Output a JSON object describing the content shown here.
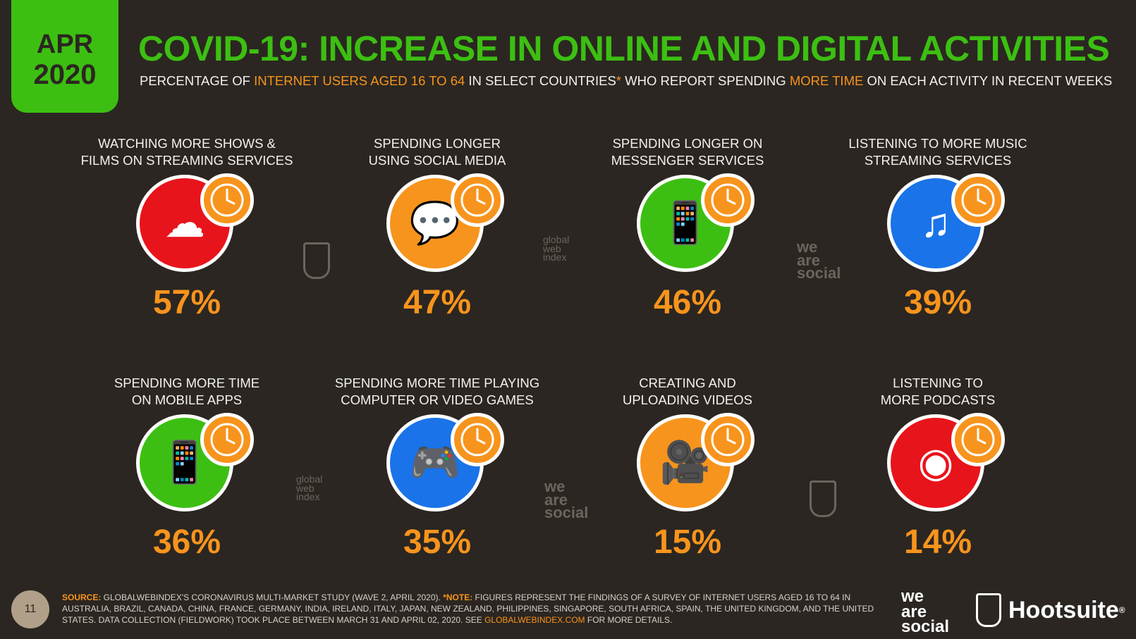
{
  "badge": {
    "month": "APR",
    "year": "2020"
  },
  "title": "COVID-19: INCREASE IN ONLINE AND DIGITAL ACTIVITIES",
  "subtitle": {
    "part1": "PERCENTAGE OF ",
    "hl1": "INTERNET USERS AGED 16 TO 64",
    "part2": " IN SELECT COUNTRIES",
    "star": "*",
    "part3": " WHO REPORT SPENDING ",
    "hl2": "MORE TIME",
    "part4": " ON EACH ACTIVITY IN RECENT WEEKS"
  },
  "activities": [
    {
      "label": "WATCHING MORE SHOWS &\nFILMS ON STREAMING SERVICES",
      "value": "57%",
      "color": "#e8141b",
      "icon": "cloud-tv-icon"
    },
    {
      "label": "SPENDING LONGER\nUSING SOCIAL MEDIA",
      "value": "47%",
      "color": "#f7941d",
      "icon": "speech-bubbles-icon"
    },
    {
      "label": "SPENDING LONGER ON\nMESSENGER SERVICES",
      "value": "46%",
      "color": "#3cbf12",
      "icon": "phone-chat-icon"
    },
    {
      "label": "LISTENING TO MORE MUSIC\nSTREAMING SERVICES",
      "value": "39%",
      "color": "#1a73e8",
      "icon": "cloud-music-icon"
    },
    {
      "label": "SPENDING MORE TIME\nON MOBILE APPS",
      "value": "36%",
      "color": "#3cbf12",
      "icon": "mobile-app-icon"
    },
    {
      "label": "SPENDING MORE TIME PLAYING\nCOMPUTER OR VIDEO GAMES",
      "value": "35%",
      "color": "#1a73e8",
      "icon": "gamepad-icon"
    },
    {
      "label": "CREATING AND\nUPLOADING VIDEOS",
      "value": "15%",
      "color": "#f7941d",
      "icon": "video-camera-icon"
    },
    {
      "label": "LISTENING TO\nMORE PODCASTS",
      "value": "14%",
      "color": "#e8141b",
      "icon": "podcast-icon"
    }
  ],
  "watermarks": {
    "was": [
      "we",
      "are",
      "social"
    ],
    "gwi": [
      "global",
      "web",
      "index"
    ]
  },
  "footer": {
    "page": "11",
    "source_label": "SOURCE:",
    "source_text": " GLOBALWEBINDEX'S CORONAVIRUS MULTI-MARKET STUDY (WAVE 2, APRIL 2020). ",
    "note_label": "*NOTE:",
    "note_text": " FIGURES REPRESENT THE FINDINGS OF A SURVEY OF INTERNET USERS AGED 16 TO 64 IN AUSTRALIA, BRAZIL, CANADA, CHINA, FRANCE, GERMANY, INDIA, IRELAND, ITALY, JAPAN, NEW ZEALAND, PHILIPPINES, SINGAPORE, SOUTH AFRICA, SPAIN, THE UNITED KINGDOM, AND THE UNITED STATES. DATA COLLECTION (FIELDWORK) TOOK PLACE BETWEEN MARCH 31 AND APRIL 02, 2020. SEE ",
    "link": "GLOBALWEBINDEX.COM",
    "tail": " FOR MORE DETAILS."
  },
  "brands": {
    "was": [
      "we",
      "are",
      "social"
    ],
    "hootsuite": "Hootsuite",
    "reg": "®"
  }
}
